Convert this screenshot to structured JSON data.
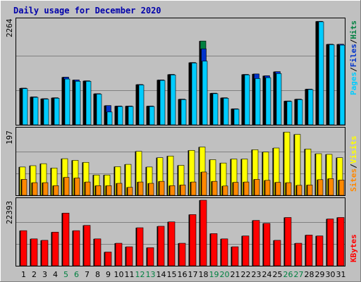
{
  "title": "Daily usage for December 2020",
  "days": [
    "1",
    "2",
    "3",
    "4",
    "5",
    "6",
    "7",
    "8",
    "9",
    "10",
    "11",
    "12",
    "13",
    "14",
    "15",
    "16",
    "17",
    "18",
    "19",
    "20",
    "21",
    "22",
    "23",
    "24",
    "25",
    "26",
    "27",
    "28",
    "29",
    "30",
    "31"
  ],
  "weekend_days": [
    "5",
    "6",
    "12",
    "13",
    "19",
    "20",
    "26",
    "27"
  ],
  "colors": {
    "background": "#c0c0c0",
    "title": "#0000aa",
    "hits": "#008040",
    "files": "#0033cc",
    "pages": "#00ccff",
    "visits": "#ffff00",
    "sites": "#ff8800",
    "kbytes": "#ff0000",
    "weekend_label": "#008040",
    "weekday_label": "#000000"
  },
  "chart_data": [
    {
      "type": "bar",
      "name": "hits-files-pages",
      "categories": [
        "1",
        "2",
        "3",
        "4",
        "5",
        "6",
        "7",
        "8",
        "9",
        "10",
        "11",
        "12",
        "13",
        "14",
        "15",
        "16",
        "17",
        "18",
        "19",
        "20",
        "21",
        "22",
        "23",
        "24",
        "25",
        "26",
        "27",
        "28",
        "29",
        "30",
        "31"
      ],
      "ylim": [
        0,
        2264
      ],
      "ymax_label": "2264",
      "legend": [
        "Pages",
        "Files",
        "Hits"
      ],
      "series": [
        {
          "name": "Hits",
          "values": [
            800,
            610,
            570,
            590,
            1040,
            980,
            960,
            680,
            420,
            410,
            410,
            880,
            410,
            980,
            1100,
            560,
            1360,
            1830,
            690,
            590,
            350,
            1100,
            1110,
            1070,
            1160,
            520,
            560,
            780,
            2260,
            1760,
            1760
          ]
        },
        {
          "name": "Files",
          "values": [
            800,
            610,
            570,
            590,
            1040,
            980,
            960,
            680,
            420,
            410,
            410,
            880,
            410,
            980,
            1100,
            560,
            1360,
            1660,
            690,
            590,
            350,
            1100,
            1110,
            1070,
            1160,
            520,
            560,
            780,
            2260,
            1760,
            1760
          ]
        },
        {
          "name": "Pages",
          "values": [
            790,
            600,
            560,
            580,
            1000,
            950,
            950,
            670,
            280,
            400,
            400,
            870,
            400,
            970,
            1090,
            550,
            1350,
            1390,
            680,
            580,
            340,
            1090,
            1010,
            1030,
            1120,
            510,
            550,
            770,
            2250,
            1750,
            1740
          ]
        }
      ]
    },
    {
      "type": "bar",
      "name": "visits-sites",
      "categories": [
        "1",
        "2",
        "3",
        "4",
        "5",
        "6",
        "7",
        "8",
        "9",
        "10",
        "11",
        "12",
        "13",
        "14",
        "15",
        "16",
        "17",
        "18",
        "19",
        "20",
        "21",
        "22",
        "23",
        "24",
        "25",
        "26",
        "27",
        "28",
        "29",
        "30",
        "31"
      ],
      "ylim": [
        0,
        197
      ],
      "ymax_label": "197",
      "legend": [
        "Sites",
        "Visits"
      ],
      "series": [
        {
          "name": "Visits",
          "values": [
            85,
            89,
            95,
            82,
            110,
            105,
            99,
            61,
            61,
            86,
            93,
            132,
            85,
            113,
            118,
            90,
            135,
            145,
            107,
            97,
            109,
            109,
            137,
            130,
            142,
            190,
            183,
            139,
            125,
            123,
            113
          ]
        },
        {
          "name": "Sites",
          "values": [
            48,
            38,
            38,
            29,
            54,
            52,
            40,
            29,
            29,
            36,
            24,
            40,
            36,
            42,
            29,
            31,
            40,
            70,
            42,
            28,
            39,
            40,
            48,
            45,
            39,
            38,
            30,
            31,
            47,
            50,
            46
          ]
        }
      ]
    },
    {
      "type": "bar",
      "name": "kbytes",
      "categories": [
        "1",
        "2",
        "3",
        "4",
        "5",
        "6",
        "7",
        "8",
        "9",
        "10",
        "11",
        "12",
        "13",
        "14",
        "15",
        "16",
        "17",
        "18",
        "19",
        "20",
        "21",
        "22",
        "23",
        "24",
        "25",
        "26",
        "27",
        "28",
        "29",
        "30",
        "31"
      ],
      "ylim": [
        0,
        22393
      ],
      "ymax_label": "22393",
      "legend": [
        "KBytes"
      ],
      "series": [
        {
          "name": "KBytes",
          "values": [
            12000,
            9200,
            8700,
            11500,
            18000,
            12000,
            13800,
            9200,
            4700,
            7700,
            6500,
            13000,
            6200,
            13500,
            15000,
            7700,
            17500,
            22393,
            11000,
            9200,
            6500,
            10200,
            15500,
            14500,
            8700,
            16500,
            7700,
            10500,
            10200,
            16000,
            16500
          ]
        }
      ]
    }
  ]
}
